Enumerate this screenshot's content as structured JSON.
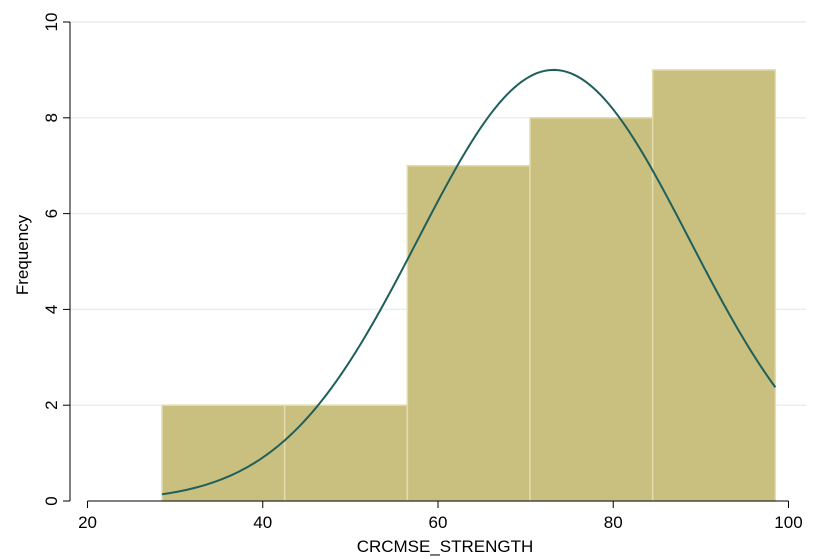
{
  "chart_data": {
    "type": "bar",
    "title": "",
    "xlabel": "CRCMSE_STRENGTH",
    "ylabel": "Frequency",
    "xlim": [
      18,
      102
    ],
    "ylim": [
      0,
      10
    ],
    "x_ticks": [
      20,
      40,
      60,
      80,
      100
    ],
    "y_ticks": [
      0,
      2,
      4,
      6,
      8,
      10
    ],
    "grid": true,
    "legend": "none",
    "bins": [
      {
        "start": 28.5,
        "end": 42.5,
        "count": 2
      },
      {
        "start": 42.5,
        "end": 56.5,
        "count": 2
      },
      {
        "start": 56.5,
        "end": 70.5,
        "count": 7
      },
      {
        "start": 70.5,
        "end": 84.5,
        "count": 8
      },
      {
        "start": 84.5,
        "end": 98.5,
        "count": 9
      }
    ],
    "normal_curve": {
      "mean": 73.2,
      "sd": 15.5,
      "peak": 9.0
    },
    "colors": {
      "bar_fill": "#c9c080",
      "bar_edge": "#e3dcae",
      "curve": "#1f5f5b",
      "grid": "#e8eef3",
      "axis": "#000000"
    }
  }
}
